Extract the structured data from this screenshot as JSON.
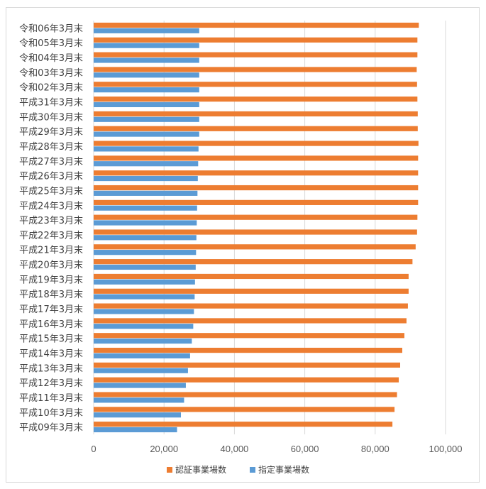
{
  "chart_data": {
    "type": "bar",
    "orientation": "horizontal",
    "categories": [
      "令和06年3月末",
      "令和05年3月末",
      "令和04年3月末",
      "令和03年3月末",
      "令和02年3月末",
      "平成31年3月末",
      "平成30年3月末",
      "平成29年3月末",
      "平成28年3月末",
      "平成27年3月末",
      "平成26年3月末",
      "平成25年3月末",
      "平成24年3月末",
      "平成23年3月末",
      "平成22年3月末",
      "平成21年3月末",
      "平成20年3月末",
      "平成19年3月末",
      "平成18年3月末",
      "平成17年3月末",
      "平成16年3月末",
      "平成15年3月末",
      "平成14年3月末",
      "平成13年3月末",
      "平成12年3月末",
      "平成11年3月末",
      "平成10年3月末",
      "平成09年3月末"
    ],
    "series": [
      {
        "name": "認証事業場数",
        "color": "#ED7D31",
        "values": [
          92400,
          92000,
          92000,
          91800,
          91900,
          92000,
          92100,
          92100,
          92300,
          92200,
          92200,
          92200,
          92200,
          92000,
          91900,
          91500,
          90600,
          89500,
          89500,
          89300,
          88900,
          88300,
          87700,
          87100,
          86700,
          86200,
          85500,
          84900
        ]
      },
      {
        "name": "指定事業場数",
        "color": "#5B9BD5",
        "values": [
          30000,
          30000,
          30000,
          30000,
          30000,
          30000,
          30000,
          30000,
          29800,
          29700,
          29600,
          29500,
          29400,
          29300,
          29200,
          29100,
          29000,
          28800,
          28700,
          28500,
          28300,
          27900,
          27400,
          26800,
          26200,
          25700,
          24800,
          23700
        ]
      }
    ],
    "xlim": [
      0,
      100000
    ],
    "xticks": [
      0,
      20000,
      40000,
      60000,
      80000,
      100000
    ],
    "xtick_labels": [
      "0",
      "20,000",
      "40,000",
      "60,000",
      "80,000",
      "100,000"
    ],
    "grid": true,
    "legend_position": "bottom"
  }
}
